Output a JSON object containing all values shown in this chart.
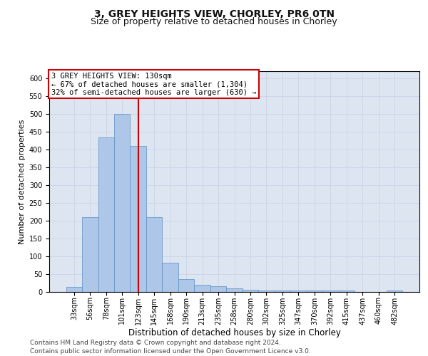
{
  "title_line1": "3, GREY HEIGHTS VIEW, CHORLEY, PR6 0TN",
  "title_line2": "Size of property relative to detached houses in Chorley",
  "xlabel": "Distribution of detached houses by size in Chorley",
  "ylabel": "Number of detached properties",
  "bar_labels": [
    "33sqm",
    "56sqm",
    "78sqm",
    "101sqm",
    "123sqm",
    "145sqm",
    "168sqm",
    "190sqm",
    "213sqm",
    "235sqm",
    "258sqm",
    "280sqm",
    "302sqm",
    "325sqm",
    "347sqm",
    "370sqm",
    "392sqm",
    "415sqm",
    "437sqm",
    "460sqm",
    "482sqm"
  ],
  "bar_values": [
    15,
    210,
    435,
    500,
    410,
    210,
    83,
    37,
    20,
    17,
    10,
    6,
    4,
    4,
    4,
    4,
    4,
    4,
    1,
    1,
    4
  ],
  "bar_color": "#aec6e8",
  "bar_edge_color": "#5a8fc2",
  "vline_color": "#cc0000",
  "vline_pos": 4.5,
  "annotation_text": "3 GREY HEIGHTS VIEW: 130sqm\n← 67% of detached houses are smaller (1,304)\n32% of semi-detached houses are larger (630) →",
  "annotation_box_color": "#ffffff",
  "annotation_box_edge": "#cc0000",
  "ylim": [
    0,
    620
  ],
  "yticks": [
    0,
    50,
    100,
    150,
    200,
    250,
    300,
    350,
    400,
    450,
    500,
    550,
    600
  ],
  "grid_color": "#c8d4e8",
  "background_color": "#dde6f0",
  "footer_line1": "Contains HM Land Registry data © Crown copyright and database right 2024.",
  "footer_line2": "Contains public sector information licensed under the Open Government Licence v3.0.",
  "title_fontsize": 10,
  "subtitle_fontsize": 9,
  "xlabel_fontsize": 8.5,
  "ylabel_fontsize": 8,
  "tick_fontsize": 7,
  "annotation_fontsize": 7.5,
  "footer_fontsize": 6.5
}
